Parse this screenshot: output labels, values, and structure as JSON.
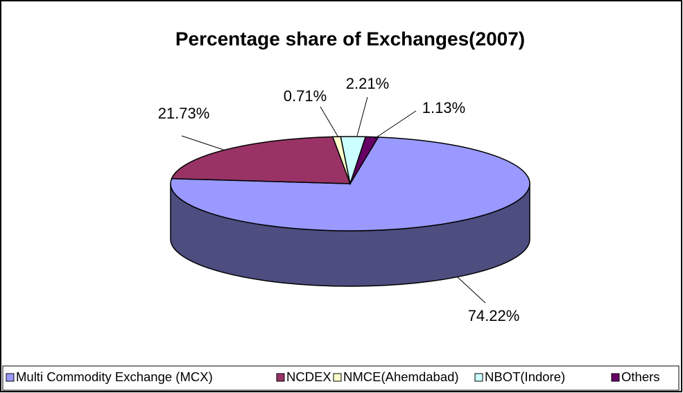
{
  "chart_data": {
    "type": "pie3d",
    "title": "Percentage share of Exchanges(2007)",
    "categories": [
      "Multi Commodity Exchange (MCX)",
      "NCDEX",
      "NMCE(Ahemdabad)",
      "NBOT(Indore)",
      "Others"
    ],
    "values": [
      74.22,
      21.73,
      0.71,
      2.21,
      1.13
    ],
    "value_labels": [
      "74.22%",
      "21.73%",
      "0.71%",
      "2.21%",
      "1.13%"
    ],
    "colors": [
      "#9999ff",
      "#993366",
      "#ffffcc",
      "#ccffff",
      "#660066"
    ],
    "legend": "bottom"
  }
}
